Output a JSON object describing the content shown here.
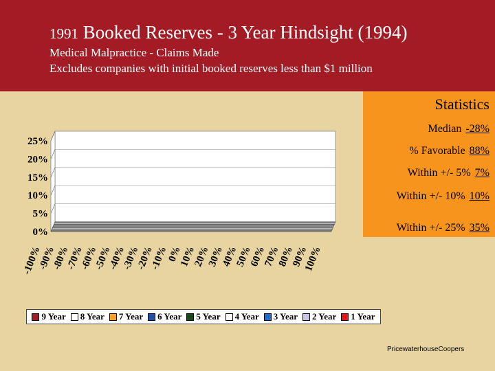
{
  "header": {
    "title_year": "1991",
    "title_rest": " Booked Reserves - 3 Year Hindsight (1994)",
    "subtitle1": "Medical Malpractice - Claims Made",
    "subtitle2": "Excludes companies with initial booked reserves less than $1 million"
  },
  "stats": {
    "title": "Statistics",
    "items": [
      {
        "label": "Median",
        "value": "-28%"
      },
      {
        "label": "% Favorable",
        "value": "88%"
      },
      {
        "label": "Within +/- 5%",
        "value": "7%"
      },
      {
        "label": "Within +/- 10%",
        "value": "10%"
      },
      {
        "label": "Within +/- 25%",
        "value": "35%"
      }
    ]
  },
  "credit": "PricewaterhouseCoopers",
  "colors": {
    "header_bg": "#a31c25",
    "page_bg": "#e8d4a0",
    "stats_bg": "#f7941d"
  },
  "chart_data": {
    "type": "area",
    "x": [
      "-100%",
      "-90%",
      "-80%",
      "-70%",
      "-60%",
      "-50%",
      "-40%",
      "-30%",
      "-20%",
      "-10%",
      "0%",
      "10%",
      "20%",
      "30%",
      "40%",
      "50%",
      "60%",
      "70%",
      "80%",
      "90%",
      "100%"
    ],
    "x_values": [
      -100,
      -95,
      -90,
      -85,
      -80,
      -75,
      -70,
      -65,
      -60,
      -55,
      -50,
      -45,
      -40,
      -35,
      -30,
      -25,
      -20,
      -15,
      -10,
      -5,
      0,
      5,
      10,
      15,
      20,
      25,
      30,
      35,
      40,
      45,
      50,
      55,
      60,
      65,
      70,
      75,
      80,
      85,
      90,
      95,
      100
    ],
    "y_ticks": [
      "0%",
      "5%",
      "10%",
      "15%",
      "20%",
      "25%"
    ],
    "ylim": [
      0,
      25
    ],
    "legend_position": "bottom",
    "series": [
      {
        "name": "1 Year",
        "color": "#e8161b",
        "values": [
          0,
          0,
          0,
          0,
          0,
          0,
          0,
          0,
          0,
          0,
          0,
          0,
          0,
          0,
          0,
          0,
          0,
          0,
          0,
          0,
          0,
          0,
          0,
          0,
          0,
          0,
          0,
          0,
          0,
          0,
          0,
          0,
          0,
          0,
          0,
          0,
          0,
          0,
          0,
          0,
          0
        ]
      },
      {
        "name": "2 Year",
        "color": "#c4c4e8",
        "values": [
          0,
          0,
          0,
          0,
          0,
          0,
          0,
          0,
          0,
          0,
          0,
          0,
          0,
          0,
          0,
          0,
          0,
          0,
          0,
          0,
          0,
          0,
          0,
          0,
          0,
          0,
          0,
          0,
          0,
          0,
          0,
          0,
          0,
          0,
          0,
          0,
          0,
          0,
          0,
          0,
          0
        ]
      },
      {
        "name": "3 Year",
        "color": "#1f6fd1",
        "values": [
          0,
          0,
          0,
          0,
          0,
          0,
          0,
          0,
          0,
          0,
          0,
          0,
          0,
          0,
          0,
          0,
          0,
          0,
          0,
          0,
          0,
          0,
          0,
          0,
          0,
          0,
          0,
          0,
          0,
          0,
          0,
          0,
          0,
          0,
          0,
          0,
          0,
          0,
          0,
          0,
          0
        ]
      },
      {
        "name": "4 Year",
        "color": "#ffffff",
        "values": [
          0,
          0,
          0,
          0,
          0,
          0,
          0,
          0,
          0,
          0,
          0,
          0,
          0,
          0,
          0,
          0,
          0,
          0,
          0,
          0,
          0,
          0,
          0,
          0,
          0,
          0,
          0,
          0,
          0,
          0,
          0,
          0,
          0,
          0,
          0,
          0,
          0,
          0,
          0,
          0,
          0
        ]
      },
      {
        "name": "5 Year",
        "color": "#1a4a1a",
        "values": [
          0,
          0,
          0,
          0,
          0,
          0,
          0,
          0,
          0,
          0,
          0,
          0,
          0,
          0,
          0,
          0,
          0,
          0,
          0,
          0,
          0,
          0,
          0,
          0,
          0,
          0,
          0,
          0,
          0,
          0,
          0,
          0,
          0,
          0,
          0,
          0,
          0,
          0,
          0,
          0,
          0
        ]
      },
      {
        "name": "6 Year",
        "color": "#1f4fa0",
        "values": [
          0,
          0,
          0,
          0,
          0,
          0,
          0,
          0,
          0,
          0,
          0,
          0,
          0,
          0,
          0,
          0,
          0,
          0,
          0,
          0,
          0,
          0,
          0,
          0,
          0,
          0,
          0,
          0,
          0,
          0,
          0,
          0,
          0,
          0,
          0,
          0,
          0,
          0,
          0,
          0,
          0
        ]
      },
      {
        "name": "7 Year",
        "color": "#f7a020",
        "values": [
          0,
          0,
          0,
          0,
          0,
          0,
          0,
          0,
          0,
          0,
          0,
          0,
          0,
          0,
          0,
          0,
          0,
          0,
          0,
          0,
          0,
          0,
          0,
          0,
          0,
          0,
          0,
          0,
          0,
          0,
          0,
          0,
          0,
          0,
          0,
          0,
          0,
          0,
          0,
          0,
          0
        ]
      },
      {
        "name": "8 Year",
        "color": "#ffffff",
        "values": [
          0,
          0,
          0,
          0,
          0,
          0,
          0,
          0,
          0,
          0,
          0,
          0,
          0,
          0,
          0,
          0,
          0,
          0,
          0,
          0,
          0,
          0,
          0,
          0,
          0,
          0,
          0,
          0,
          0,
          0,
          0,
          0,
          0,
          0,
          0,
          0,
          0,
          0,
          0,
          0,
          0
        ]
      },
      {
        "name": "9 Year",
        "color": "#a31c25",
        "values": [
          0,
          0,
          0,
          0,
          0,
          0,
          0,
          0,
          0,
          0,
          0,
          0,
          0,
          0,
          0,
          0,
          0,
          0,
          0,
          0,
          0,
          0,
          0,
          0,
          0,
          0,
          0,
          0,
          0,
          0,
          0,
          0,
          0,
          0,
          0,
          0,
          0,
          0,
          0,
          0,
          0
        ]
      }
    ]
  }
}
